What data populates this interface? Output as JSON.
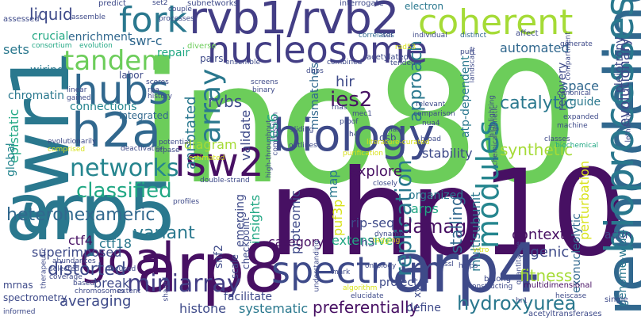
{
  "palette": {
    "green": "#6ccd5a",
    "lime": "#a5db36",
    "yellow": "#d8e219",
    "teal": "#25858e",
    "teal2": "#2a788e",
    "blue": "#31688e",
    "slate": "#3e4a89",
    "indigo": "#433e85",
    "navy": "#471063",
    "purple": "#46327e",
    "sea": "#1f9e89",
    "aqua": "#22a884",
    "mint": "#35b779",
    "dark": "#30123b",
    "cyan": "#26828e",
    "grey": "#414487"
  },
  "words": [
    {
      "text": "ino80",
      "color": "#6ccd5a",
      "rotated": false
    },
    {
      "text": "nhp10",
      "color": "#471063",
      "rotated": false
    },
    {
      "text": "swr1",
      "color": "#2a788e",
      "rotated": true
    },
    {
      "text": "arp5",
      "color": "#2a788e",
      "rotated": false
    },
    {
      "text": "remodeling",
      "color": "#31688e",
      "rotated": true
    },
    {
      "text": "arp8",
      "color": "#471063",
      "rotated": false
    },
    {
      "text": "arp4",
      "color": "#3e4a89",
      "rotated": false
    },
    {
      "text": "rvb1/rvb2",
      "color": "#433e85",
      "rotated": false
    },
    {
      "text": "bioprocesses",
      "color": "#2a788e",
      "rotated": true
    },
    {
      "text": "biology",
      "color": "#3e4a89",
      "rotated": false
    },
    {
      "text": "nucleosome",
      "color": "#433e85",
      "rotated": false
    },
    {
      "text": "fork",
      "color": "#2a788e",
      "rotated": false
    },
    {
      "text": "coherent",
      "color": "#a5db36",
      "rotated": false
    },
    {
      "text": "h2a",
      "color": "#31688e",
      "rotated": false
    },
    {
      "text": "hubs",
      "color": "#31688e",
      "rotated": false
    },
    {
      "text": "isw2",
      "color": "#471063",
      "rotated": false
    },
    {
      "text": "goal",
      "color": "#471063",
      "rotated": false
    },
    {
      "text": "spectrum",
      "color": "#3e4a89",
      "rotated": false
    },
    {
      "text": "tandem",
      "color": "#6ccd5a",
      "rotated": false
    },
    {
      "text": "modules",
      "color": "#25858e",
      "rotated": true
    },
    {
      "text": "networks",
      "color": "#25858e",
      "rotated": false
    },
    {
      "text": "array",
      "color": "#2a788e",
      "rotated": true
    },
    {
      "text": "classified",
      "color": "#22a884",
      "rotated": false
    },
    {
      "text": "miniarray",
      "color": "#433e85",
      "rotated": false
    },
    {
      "text": "heterohexameric",
      "color": "#31688e",
      "rotated": false
    },
    {
      "text": "replication",
      "color": "#2a788e",
      "rotated": true
    },
    {
      "text": "hydroxyurea",
      "color": "#2a788e",
      "rotated": false
    },
    {
      "text": "ies2",
      "color": "#471063",
      "rotated": false
    },
    {
      "text": "approach",
      "color": "#2a788e",
      "rotated": true
    },
    {
      "text": "damage",
      "color": "#471063",
      "rotated": false
    },
    {
      "text": "distorted",
      "color": "#3e4a89",
      "rotated": false
    },
    {
      "text": "variant",
      "color": "#2a788e",
      "rotated": false
    },
    {
      "text": "ctf4",
      "color": "#471063",
      "rotated": false
    },
    {
      "text": "ctf18",
      "color": "#2a788e",
      "rotated": false
    },
    {
      "text": "superimposed",
      "color": "#3e4a89",
      "rotated": false
    },
    {
      "text": "swr-c",
      "color": "#31688e",
      "rotated": false
    },
    {
      "text": "enrichment",
      "color": "#31688e",
      "rotated": false
    },
    {
      "text": "liquid",
      "color": "#3e4a89",
      "rotated": false
    },
    {
      "text": "sets",
      "color": "#2a788e",
      "rotated": false
    },
    {
      "text": "crucial",
      "color": "#22a884",
      "rotated": false
    },
    {
      "text": "wiring",
      "color": "#2a788e",
      "rotated": false
    },
    {
      "text": "chromatin",
      "color": "#2a788e",
      "rotated": false
    },
    {
      "text": "epistatic",
      "color": "#22a884",
      "rotated": true
    },
    {
      "text": "global",
      "color": "#25858e",
      "rotated": true
    },
    {
      "text": "labor",
      "color": "#3e4a89",
      "rotated": false
    },
    {
      "text": "repair",
      "color": "#22a884",
      "rotated": false
    },
    {
      "text": "annotated",
      "color": "#2a788e",
      "rotated": true
    },
    {
      "text": "rvbs",
      "color": "#3e4a89",
      "rotated": false
    },
    {
      "text": "connections",
      "color": "#25858e",
      "rotated": false
    },
    {
      "text": "integrated",
      "color": "#31688e",
      "rotated": false
    },
    {
      "text": "hir",
      "color": "#3e4a89",
      "rotated": false
    },
    {
      "text": "ies6",
      "color": "#22a884",
      "rotated": true
    },
    {
      "text": "validate",
      "color": "#3e4a89",
      "rotated": true
    },
    {
      "text": "mismatches",
      "color": "#31688e",
      "rotated": true
    },
    {
      "text": "diagram",
      "color": "#a5db36",
      "rotated": false
    },
    {
      "text": "explore",
      "color": "#471063",
      "rotated": false
    },
    {
      "text": "dsb",
      "color": "#3e4a89",
      "rotated": false
    },
    {
      "text": "atp-dependent",
      "color": "#2a788e",
      "rotated": true
    },
    {
      "text": "catalytic",
      "color": "#2a788e",
      "rotated": false
    },
    {
      "text": "automated",
      "color": "#31688e",
      "rotated": false
    },
    {
      "text": "recovery",
      "color": "#3e4a89",
      "rotated": true
    },
    {
      "text": "space",
      "color": "#31688e",
      "rotated": false
    },
    {
      "text": "evolutionary",
      "color": "#3e4a89",
      "rotated": true
    },
    {
      "text": "pleiotropy",
      "color": "#3e4a89",
      "rotated": true
    },
    {
      "text": "guide",
      "color": "#2a788e",
      "rotated": false
    },
    {
      "text": "synthetic",
      "color": "#a5db36",
      "rotated": false
    },
    {
      "text": "stability",
      "color": "#3e4a89",
      "rotated": false
    },
    {
      "text": "fitness",
      "color": "#a5db36",
      "rotated": false
    },
    {
      "text": "organized",
      "color": "#2a788e",
      "rotated": false
    },
    {
      "text": "arps",
      "color": "#22a884",
      "rotated": false
    },
    {
      "text": "stalling",
      "color": "#31688e",
      "rotated": true
    },
    {
      "text": "multisubunit",
      "color": "#2a788e",
      "rotated": true
    },
    {
      "text": "context",
      "color": "#471063",
      "rotated": false
    },
    {
      "text": "digenic",
      "color": "#3e4a89",
      "rotated": false
    },
    {
      "text": "perturbation",
      "color": "#d8e219",
      "rotated": true
    },
    {
      "text": "exonucleolytic",
      "color": "#31688e",
      "rotated": true
    },
    {
      "text": "rip-seq",
      "color": "#3e4a89",
      "rotated": false
    },
    {
      "text": "map",
      "color": "#2a788e",
      "rotated": true
    },
    {
      "text": "puf3p",
      "color": "#d8e219",
      "rotated": true
    },
    {
      "text": "proteomic",
      "color": "#3e4a89",
      "rotated": true
    },
    {
      "text": "insights",
      "color": "#22a884",
      "rotated": true
    },
    {
      "text": "emerging",
      "color": "#3e4a89",
      "rotated": true
    },
    {
      "text": "extensive",
      "color": "#22a884",
      "rotated": false
    },
    {
      "text": "category",
      "color": "#471063",
      "rotated": false
    },
    {
      "text": "break",
      "color": "#3e4a89",
      "rotated": false
    },
    {
      "text": "averaging",
      "color": "#3e4a89",
      "rotated": false
    },
    {
      "text": "snf2",
      "color": "#3e4a89",
      "rotated": true
    },
    {
      "text": "facilitate",
      "color": "#3e4a89",
      "rotated": false
    },
    {
      "text": "systematic",
      "color": "#2a788e",
      "rotated": false
    },
    {
      "text": "preferentially",
      "color": "#471063",
      "rotated": false
    },
    {
      "text": "define",
      "color": "#3e4a89",
      "rotated": false
    },
    {
      "text": "histone",
      "color": "#3e4a89",
      "rotated": false
    },
    {
      "text": "genome-wide",
      "color": "#2a788e",
      "rotated": true
    },
    {
      "text": "h3",
      "color": "#3e4a89",
      "rotated": false
    },
    {
      "text": "actin",
      "color": "#3e4a89",
      "rotated": false
    },
    {
      "text": "project",
      "color": "#3e4a89",
      "rotated": false
    },
    {
      "text": "mrnas",
      "color": "#3e4a89",
      "rotated": false
    },
    {
      "text": "spectrometry",
      "color": "#3e4a89",
      "rotated": false
    },
    {
      "text": "scale",
      "color": "#3e4a89",
      "rotated": true
    },
    {
      "text": "checkpoint",
      "color": "#3e4a89",
      "rotated": true
    },
    {
      "text": "xv",
      "color": "#3e4a89",
      "rotated": true
    },
    {
      "text": "acetyltransferases",
      "color": "#3e4a89",
      "rotated": false
    },
    {
      "text": "multidimensional",
      "color": "#471063",
      "rotated": false
    },
    {
      "text": "single",
      "color": "#3e4a89",
      "rotated": false
    },
    {
      "text": "belong",
      "color": "#3e4a89",
      "rotated": false
    },
    {
      "text": "subnetworks",
      "color": "#3e4a89",
      "rotated": false
    },
    {
      "text": "predict",
      "color": "#3e4a89",
      "rotated": false
    },
    {
      "text": "electron",
      "color": "#2a788e",
      "rotated": false
    },
    {
      "text": "assessed",
      "color": "#3e4a89",
      "rotated": false
    },
    {
      "text": "assemble",
      "color": "#3e4a89",
      "rotated": false
    },
    {
      "text": "couple",
      "color": "#3e4a89",
      "rotated": false
    },
    {
      "text": "processes",
      "color": "#3e4a89",
      "rotated": false
    },
    {
      "text": "consortium",
      "color": "#22a884",
      "rotated": false
    },
    {
      "text": "evolution",
      "color": "#22a884",
      "rotated": false
    },
    {
      "text": "correlates",
      "color": "#31688e",
      "rotated": false
    },
    {
      "text": "individual",
      "color": "#3e4a89",
      "rotated": false
    },
    {
      "text": "distinct",
      "color": "#31688e",
      "rotated": false
    },
    {
      "text": "pairs",
      "color": "#3e4a89",
      "rotated": false
    },
    {
      "text": "ensemble",
      "color": "#3e4a89",
      "rotated": false
    },
    {
      "text": "diverse",
      "color": "#6ccd5a",
      "rotated": false
    },
    {
      "text": "acetylated",
      "color": "#3e4a89",
      "rotated": false
    },
    {
      "text": "tended",
      "color": "#3e4a89",
      "rotated": false
    },
    {
      "text": "interrogate",
      "color": "#3e4a89",
      "rotated": false
    },
    {
      "text": "combined",
      "color": "#3e4a89",
      "rotated": false
    },
    {
      "text": "sdl",
      "color": "#3e4a89",
      "rotated": false
    },
    {
      "text": "affect",
      "color": "#3e4a89",
      "rotated": false
    },
    {
      "text": "generate",
      "color": "#3e4a89",
      "rotated": false
    },
    {
      "text": "canonical",
      "color": "#3e4a89",
      "rotated": false
    },
    {
      "text": "expanded",
      "color": "#3e4a89",
      "rotated": false
    },
    {
      "text": "machine",
      "color": "#3e4a89",
      "rotated": false
    },
    {
      "text": "classes",
      "color": "#3e4a89",
      "rotated": false
    },
    {
      "text": "biochemical",
      "color": "#22a884",
      "rotated": false
    },
    {
      "text": "lethality",
      "color": "#3e4a89",
      "rotated": true
    },
    {
      "text": "relevant",
      "color": "#3e4a89",
      "rotated": false
    },
    {
      "text": "comparison",
      "color": "#3e4a89",
      "rotated": false
    },
    {
      "text": "nua4",
      "color": "#3e4a89",
      "rotated": false
    },
    {
      "text": "mec1",
      "color": "#3e4a89",
      "rotated": false
    },
    {
      "text": "proof",
      "color": "#3e4a89",
      "rotated": false
    },
    {
      "text": "rnas",
      "color": "#3e4a89",
      "rotated": false
    },
    {
      "text": "sliding",
      "color": "#3e4a89",
      "rotated": false
    },
    {
      "text": "mass",
      "color": "#3e4a89",
      "rotated": false
    },
    {
      "text": "broad",
      "color": "#3e4a89",
      "rotated": false
    },
    {
      "text": "screens",
      "color": "#3e4a89",
      "rotated": false
    },
    {
      "text": "binary",
      "color": "#3e4a89",
      "rotated": false
    },
    {
      "text": "scores",
      "color": "#3e4a89",
      "rotated": false
    },
    {
      "text": "rpa",
      "color": "#3e4a89",
      "rotated": false
    },
    {
      "text": "history",
      "color": "#3e4a89",
      "rotated": false
    },
    {
      "text": "linear",
      "color": "#3e4a89",
      "rotated": false
    },
    {
      "text": "gained",
      "color": "#3e4a89",
      "rotated": false
    },
    {
      "text": "evolutionarily",
      "color": "#3e4a89",
      "rotated": false
    },
    {
      "text": "comprised",
      "color": "#d8e219",
      "rotated": false
    },
    {
      "text": "deactivation",
      "color": "#3e4a89",
      "rotated": false
    },
    {
      "text": "potential",
      "color": "#3e4a89",
      "rotated": false
    },
    {
      "text": "atpase",
      "color": "#3e4a89",
      "rotated": false
    },
    {
      "text": "estimated",
      "color": "#d8e219",
      "rotated": false
    },
    {
      "text": "outlines",
      "color": "#3e4a89",
      "rotated": false
    },
    {
      "text": "purification",
      "color": "#d8e219",
      "rotated": false
    },
    {
      "text": "closely",
      "color": "#3e4a89",
      "rotated": false
    },
    {
      "text": "high-throughput",
      "color": "#3e4a89",
      "rotated": true
    },
    {
      "text": "composition",
      "color": "#3e4a89",
      "rotated": true
    },
    {
      "text": "double-strand",
      "color": "#3e4a89",
      "rotated": false
    },
    {
      "text": "profiles",
      "color": "#3e4a89",
      "rotated": false
    },
    {
      "text": "abundances",
      "color": "#3e4a89",
      "rotated": false
    },
    {
      "text": "selected",
      "color": "#3e4a89",
      "rotated": false
    },
    {
      "text": "coverage",
      "color": "#3e4a89",
      "rotated": false
    },
    {
      "text": "focused",
      "color": "#3e4a89",
      "rotated": false
    },
    {
      "text": "therapeutic",
      "color": "#3e4a89",
      "rotated": true
    },
    {
      "text": "chromosomes",
      "color": "#3e4a89",
      "rotated": false
    },
    {
      "text": "based",
      "color": "#3e4a89",
      "rotated": false
    },
    {
      "text": "extent",
      "color": "#3e4a89",
      "rotated": false
    },
    {
      "text": "shared",
      "color": "#3e4a89",
      "rotated": true
    },
    {
      "text": "informed",
      "color": "#3e4a89",
      "rotated": false
    },
    {
      "text": "mark",
      "color": "#3e4a89",
      "rotated": false
    },
    {
      "text": "understanding",
      "color": "#3e4a89",
      "rotated": true
    },
    {
      "text": "algorithm",
      "color": "#d8e219",
      "rotated": false
    },
    {
      "text": "ontology",
      "color": "#3e4a89",
      "rotated": false
    },
    {
      "text": "elucidate",
      "color": "#3e4a89",
      "rotated": false
    },
    {
      "text": "constructing",
      "color": "#3e4a89",
      "rotated": false
    },
    {
      "text": "helps",
      "color": "#3e4a89",
      "rotated": false
    },
    {
      "text": "quantitative",
      "color": "#3e4a89",
      "rotated": true
    },
    {
      "text": "heiscase",
      "color": "#3e4a89",
      "rotated": false
    },
    {
      "text": "dynamic",
      "color": "#3e4a89",
      "rotated": false
    },
    {
      "text": "tagging",
      "color": "#d8e219",
      "rotated": false
    },
    {
      "text": "vitro",
      "color": "#d8e219",
      "rotated": false
    },
    {
      "text": "purf",
      "color": "#3e4a89",
      "rotated": false
    },
    {
      "text": "set2",
      "color": "#3e4a89",
      "rotated": false
    },
    {
      "text": "landscape",
      "color": "#3e4a89",
      "rotated": true
    },
    {
      "text": "highlighting",
      "color": "#3e4a89",
      "rotated": true
    },
    {
      "text": "chemical-genetic",
      "color": "#3e4a89",
      "rotated": true
    },
    {
      "text": "compartment",
      "color": "#3e4a89",
      "rotated": true
    },
    {
      "text": "rad53",
      "color": "#d8e219",
      "rotated": false
    },
    {
      "text": "dbbs",
      "color": "#3e4a89",
      "rotated": false
    },
    {
      "text": "h4",
      "color": "#3e4a89",
      "rotated": false
    },
    {
      "text": "literature-curated",
      "color": "#d8e219",
      "rotated": false
    },
    {
      "text": "ssl",
      "color": "#3e4a89",
      "rotated": false
    },
    {
      "text": "hr1",
      "color": "#3e4a89",
      "rotated": false
    }
  ]
}
